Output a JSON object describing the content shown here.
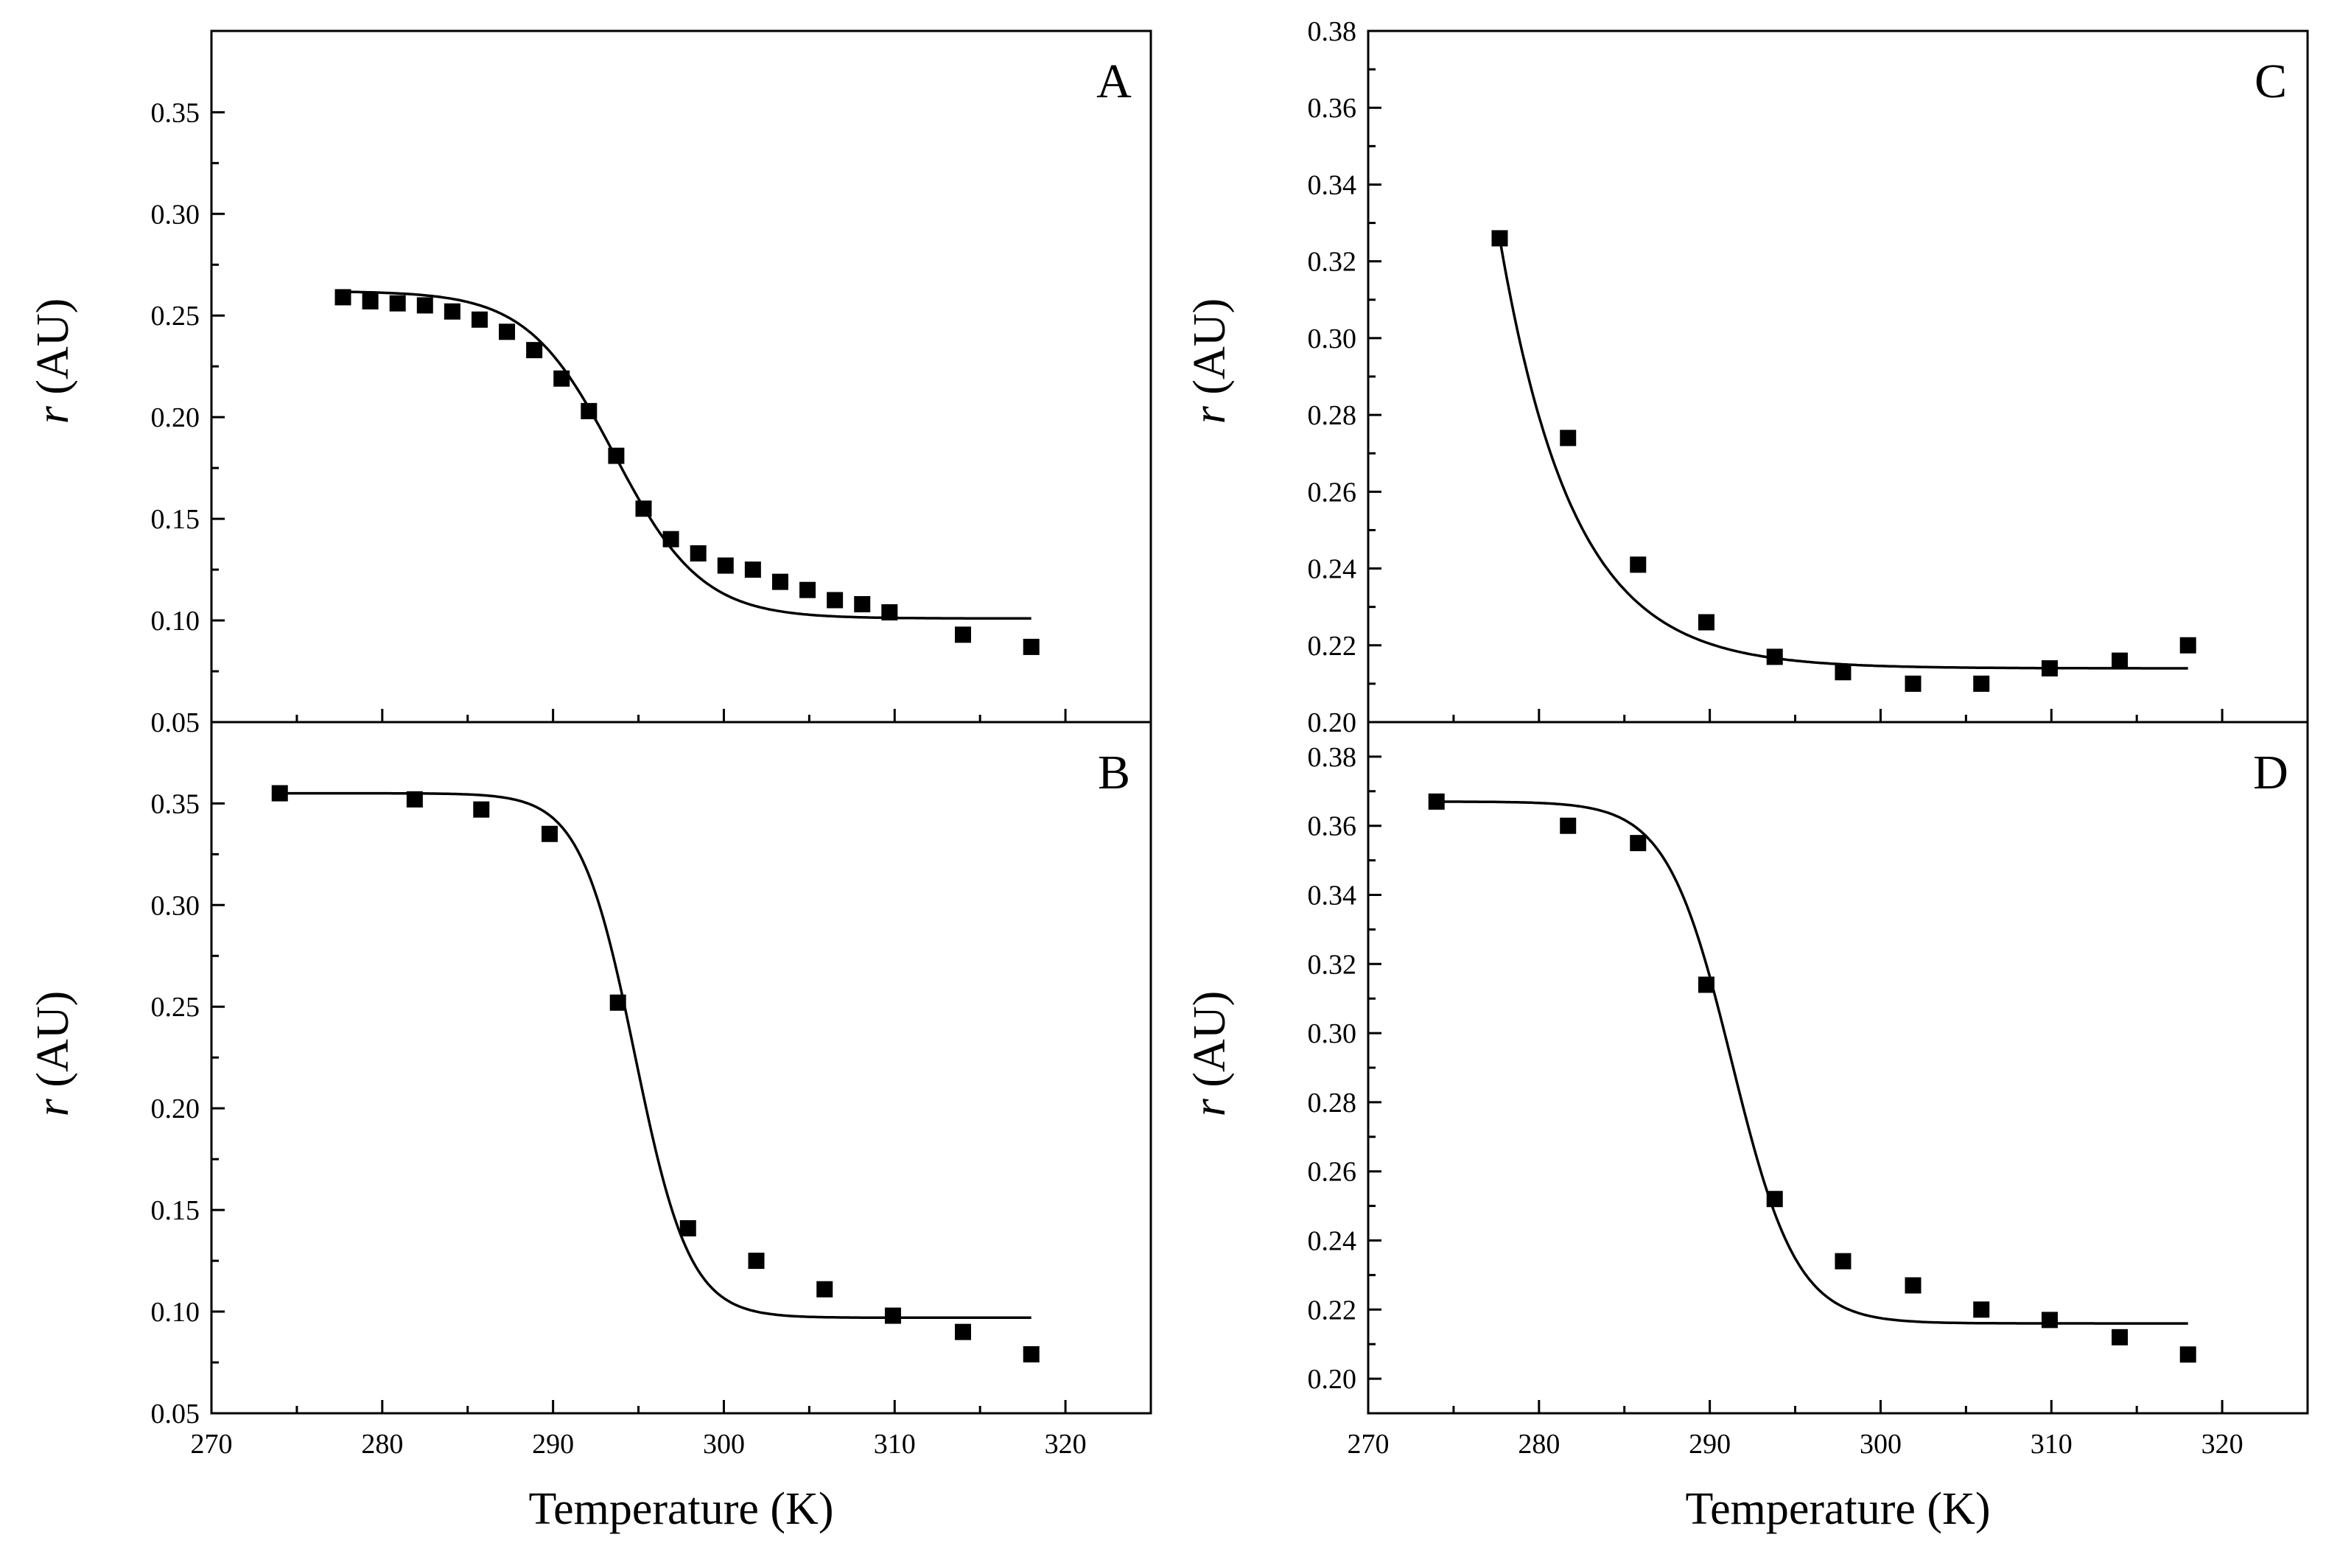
{
  "chart_data": [
    {
      "type": "scatter",
      "panel": "A",
      "xlabel": "",
      "ylabel_italic": "r",
      "ylabel_rest": " (AU)",
      "xlim": [
        270,
        325
      ],
      "ylim": [
        0.05,
        0.39
      ],
      "xticks": [
        270,
        280,
        290,
        300,
        310,
        320
      ],
      "yticks": [
        "0.05",
        "0.10",
        "0.15",
        "0.20",
        "0.25",
        "0.30",
        "0.35"
      ],
      "x": [
        277.7,
        279.3,
        280.9,
        282.5,
        284.1,
        285.7,
        287.3,
        288.9,
        290.5,
        292.1,
        293.7,
        295.3,
        296.9,
        298.5,
        300.1,
        301.7,
        303.3,
        304.9,
        306.5,
        308.1,
        309.7,
        314.0,
        318.0
      ],
      "y": [
        0.259,
        0.257,
        0.256,
        0.255,
        0.252,
        0.248,
        0.242,
        0.233,
        0.219,
        0.203,
        0.181,
        0.155,
        0.14,
        0.133,
        0.127,
        0.125,
        0.119,
        0.115,
        0.11,
        0.108,
        0.104,
        0.093,
        0.087
      ],
      "fit": {
        "top": 0.262,
        "bottom": 0.101,
        "x0": 293.6,
        "k": 2.55,
        "xstart": 277.7,
        "xend": 318.0
      }
    },
    {
      "type": "scatter",
      "panel": "B",
      "xlabel": "Temperature (K)",
      "ylabel_italic": "r",
      "ylabel_rest": " (AU)",
      "xlim": [
        270,
        325
      ],
      "ylim": [
        0.05,
        0.39
      ],
      "xticks": [
        270,
        280,
        290,
        300,
        310,
        320
      ],
      "yticks": [
        "0.05",
        "0.10",
        "0.15",
        "0.20",
        "0.25",
        "0.30",
        "0.35"
      ],
      "x": [
        274.0,
        281.9,
        285.8,
        289.8,
        293.8,
        297.9,
        301.9,
        305.9,
        309.9,
        314.0,
        318.0
      ],
      "y": [
        0.355,
        0.352,
        0.347,
        0.335,
        0.252,
        0.141,
        0.125,
        0.111,
        0.098,
        0.09,
        0.079
      ],
      "fit": {
        "top": 0.355,
        "bottom": 0.097,
        "x0": 294.8,
        "k": 1.6,
        "xstart": 274.0,
        "xend": 318.0
      }
    },
    {
      "type": "scatter",
      "panel": "C",
      "xlabel": "",
      "ylabel_italic": "r",
      "ylabel_rest": " (AU)",
      "xlim": [
        270,
        325
      ],
      "ylim": [
        0.2,
        0.38
      ],
      "xticks": [
        270,
        280,
        290,
        300,
        310,
        320
      ],
      "yticks": [
        "0.20",
        "0.22",
        "0.24",
        "0.26",
        "0.28",
        "0.30",
        "0.32",
        "0.34",
        "0.36",
        "0.38"
      ],
      "x": [
        277.7,
        281.7,
        285.8,
        289.8,
        293.8,
        297.8,
        301.9,
        305.9,
        309.9,
        314.0,
        318.0
      ],
      "y": [
        0.326,
        0.274,
        0.241,
        0.226,
        0.217,
        0.213,
        0.21,
        0.21,
        0.214,
        0.216,
        0.22
      ],
      "fit": {
        "type": "exp",
        "a": 0.214,
        "b": 0.112,
        "t0": 277.7,
        "tau": 4.3,
        "xstart": 277.7,
        "xend": 318.0
      }
    },
    {
      "type": "scatter",
      "panel": "D",
      "xlabel": "Temperature (K)",
      "ylabel_italic": "r",
      "ylabel_rest": " (AU)",
      "xlim": [
        270,
        325
      ],
      "ylim": [
        0.19,
        0.39
      ],
      "xticks": [
        270,
        280,
        290,
        300,
        310,
        320
      ],
      "yticks": [
        "0.20",
        "0.22",
        "0.24",
        "0.26",
        "0.28",
        "0.30",
        "0.32",
        "0.34",
        "0.36",
        "0.38"
      ],
      "x": [
        274.0,
        281.7,
        285.8,
        289.8,
        293.8,
        297.8,
        301.9,
        305.9,
        309.9,
        314.0,
        318.0
      ],
      "y": [
        0.367,
        0.36,
        0.355,
        0.314,
        0.252,
        0.234,
        0.227,
        0.22,
        0.217,
        0.212,
        0.207
      ],
      "fit": {
        "top": 0.367,
        "bottom": 0.216,
        "x0": 291.3,
        "k": 1.9,
        "xstart": 274.0,
        "xend": 318.0
      }
    }
  ]
}
